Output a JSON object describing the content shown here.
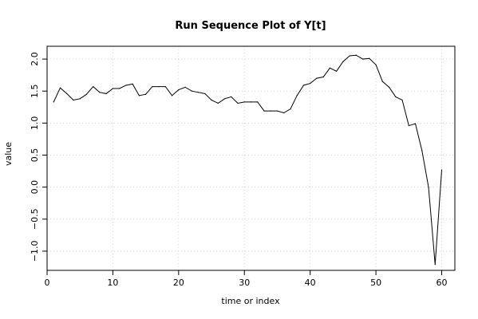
{
  "chart_data": {
    "type": "line",
    "title": "Run Sequence Plot of Y[t]",
    "xlabel": "time or index",
    "ylabel": "value",
    "xlim": [
      0,
      62
    ],
    "ylim": [
      -1.3,
      2.2
    ],
    "x_ticks": [
      0,
      10,
      20,
      30,
      40,
      50,
      60
    ],
    "y_ticks": [
      -1.0,
      -0.5,
      0.0,
      0.5,
      1.0,
      1.5,
      2.0
    ],
    "y_tick_labels": [
      "−1.0",
      "−0.5",
      "0.0",
      "0.5",
      "1.0",
      "1.5",
      "2.0"
    ],
    "grid": true,
    "series": [
      {
        "x": [
          1,
          2,
          3,
          4,
          5,
          6,
          7,
          8,
          9,
          10,
          11,
          12,
          13,
          14,
          15,
          16,
          17,
          18,
          19,
          20,
          21,
          22,
          23,
          24,
          25,
          26,
          27,
          28,
          29,
          30,
          31,
          32,
          33,
          34,
          35,
          36,
          37,
          38,
          39,
          40,
          41,
          42,
          43,
          44,
          45,
          46,
          47,
          48,
          49,
          50,
          51,
          52,
          53,
          54,
          55,
          56,
          57,
          58,
          59,
          60
        ],
        "values": [
          1.33,
          1.55,
          1.46,
          1.36,
          1.38,
          1.45,
          1.57,
          1.48,
          1.46,
          1.54,
          1.54,
          1.59,
          1.61,
          1.43,
          1.45,
          1.57,
          1.57,
          1.57,
          1.43,
          1.52,
          1.56,
          1.5,
          1.48,
          1.46,
          1.36,
          1.31,
          1.38,
          1.41,
          1.31,
          1.33,
          1.33,
          1.33,
          1.19,
          1.19,
          1.19,
          1.16,
          1.22,
          1.43,
          1.59,
          1.62,
          1.7,
          1.72,
          1.86,
          1.81,
          1.96,
          2.05,
          2.06,
          2.0,
          2.01,
          1.91,
          1.65,
          1.56,
          1.41,
          1.36,
          0.96,
          0.99,
          0.57,
          0.0,
          -1.21,
          0.27
        ]
      }
    ],
    "line_color": "#000000",
    "grid_color": "#d3d3d3"
  }
}
